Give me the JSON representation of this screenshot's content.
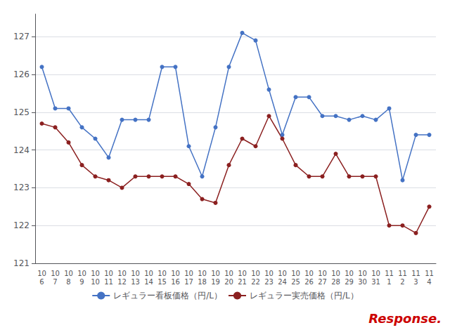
{
  "chart_data": {
    "type": "line",
    "categories": [
      "10\n6",
      "10\n7",
      "10\n8",
      "10\n9",
      "10\n10",
      "10\n11",
      "10\n12",
      "10\n13",
      "10\n14",
      "10\n15",
      "10\n16",
      "10\n17",
      "10\n18",
      "10\n19",
      "10\n20",
      "10\n21",
      "10\n22",
      "10\n23",
      "10\n24",
      "10\n25",
      "10\n26",
      "10\n27",
      "10\n28",
      "10\n29",
      "10\n30",
      "10\n31",
      "11\n1",
      "11\n2",
      "11\n3",
      "11\n4"
    ],
    "series": [
      {
        "name": "レギュラー看板価格（円/L）",
        "color": "#4472C4",
        "marker": "circle",
        "values": [
          126.2,
          125.1,
          125.1,
          124.6,
          124.3,
          123.8,
          124.8,
          124.8,
          124.8,
          126.2,
          126.2,
          124.1,
          123.3,
          124.6,
          126.2,
          127.1,
          126.9,
          125.6,
          124.4,
          125.4,
          125.4,
          124.9,
          124.9,
          124.8,
          124.9,
          124.8,
          125.1,
          123.2,
          124.4,
          124.4
        ]
      },
      {
        "name": "レギュラー実売価格（円/L）",
        "color": "#8B2020",
        "marker": "circle",
        "values": [
          124.7,
          124.6,
          124.2,
          123.6,
          123.3,
          123.2,
          123.0,
          123.3,
          123.3,
          123.3,
          123.3,
          123.1,
          122.7,
          122.6,
          123.6,
          124.3,
          124.1,
          124.9,
          124.3,
          123.6,
          123.3,
          123.3,
          123.9,
          123.3,
          123.3,
          123.3,
          122.0,
          122.0,
          121.8,
          122.5
        ]
      }
    ],
    "ylim": [
      121,
      127.6
    ],
    "yticks": [
      121,
      122,
      123,
      124,
      125,
      126,
      127
    ],
    "grid": true,
    "legend": "bottom",
    "annotations": [
      {
        "text": "Response.",
        "color": "#cc0000"
      }
    ]
  }
}
